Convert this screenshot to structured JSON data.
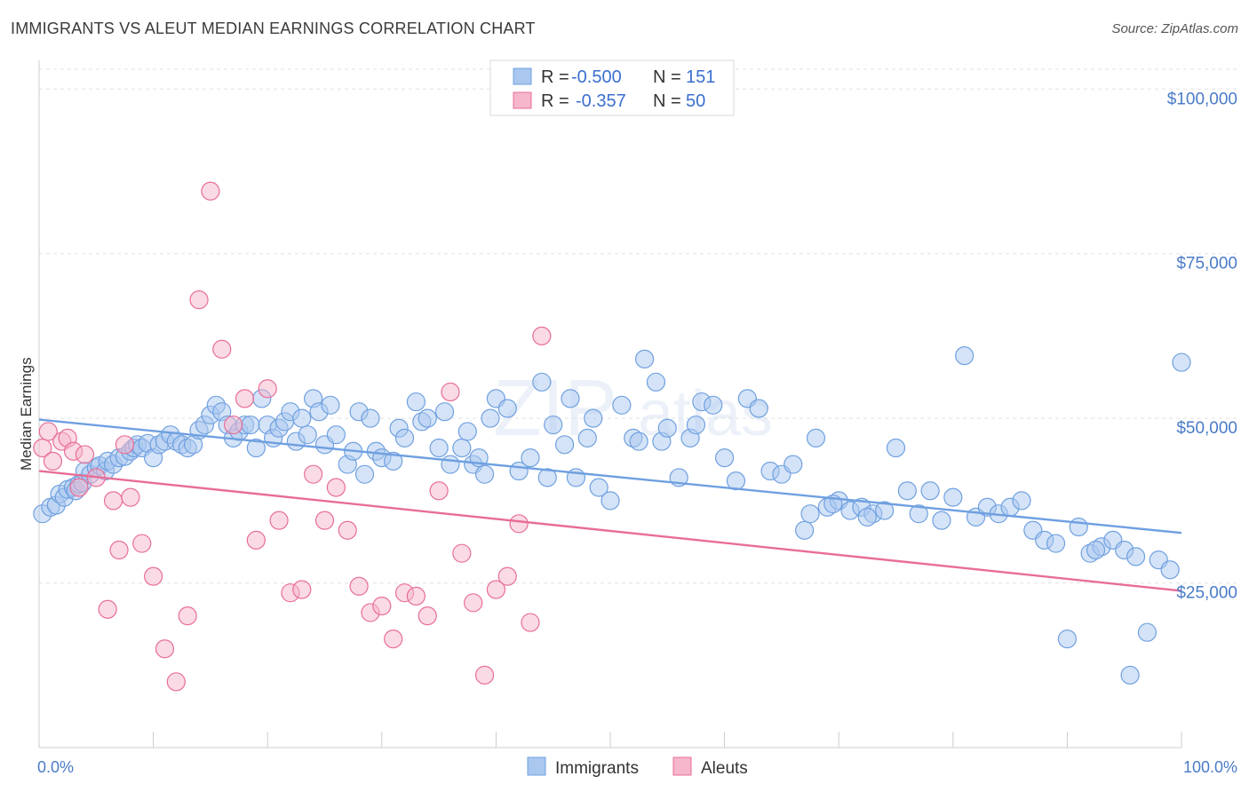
{
  "header": {
    "title": "IMMIGRANTS VS ALEUT MEDIAN EARNINGS CORRELATION CHART",
    "source": "Source: ZipAtlas.com"
  },
  "stats_legend": {
    "r_label": "R =",
    "n_label": "N =",
    "rows": [
      {
        "color": "#a9c7ef",
        "r": "-0.500",
        "n": "151"
      },
      {
        "color": "#f6b6cb",
        "r": "-0.357",
        "n": "50"
      }
    ]
  },
  "watermark": {
    "zip": "ZIP",
    "atlas": "atlas"
  },
  "chart_data": {
    "type": "scatter",
    "title": "IMMIGRANTS VS ALEUT MEDIAN EARNINGS CORRELATION CHART",
    "xlabel": "",
    "ylabel": "Median Earnings",
    "xlim": [
      0,
      100
    ],
    "ylim": [
      0,
      103000
    ],
    "x_tick_labels": [
      "0.0%",
      "100.0%"
    ],
    "y_ticks": [
      25000,
      50000,
      75000,
      100000
    ],
    "y_tick_labels": [
      "$25,000",
      "$50,000",
      "$75,000",
      "$100,000"
    ],
    "grid": true,
    "legend_position": "bottom-center",
    "series": [
      {
        "name": "Immigrants",
        "color": "#6fa0e0",
        "fill": "#a9c7ef",
        "trend": {
          "x": [
            0,
            100
          ],
          "y": [
            49800,
            32600
          ]
        },
        "points": [
          [
            0.3,
            35500
          ],
          [
            1,
            36500
          ],
          [
            1.5,
            36800
          ],
          [
            1.8,
            38500
          ],
          [
            2.2,
            38000
          ],
          [
            2.5,
            39200
          ],
          [
            3,
            39500
          ],
          [
            3.2,
            39000
          ],
          [
            3.5,
            40000
          ],
          [
            3.8,
            40200
          ],
          [
            4,
            42000
          ],
          [
            4.5,
            41500
          ],
          [
            5,
            42500
          ],
          [
            5.3,
            42800
          ],
          [
            5.8,
            42000
          ],
          [
            6,
            43500
          ],
          [
            6.5,
            43000
          ],
          [
            7,
            44000
          ],
          [
            7.5,
            44200
          ],
          [
            8,
            45000
          ],
          [
            8.3,
            45500
          ],
          [
            8.6,
            46000
          ],
          [
            9,
            45500
          ],
          [
            9.5,
            46200
          ],
          [
            10,
            44000
          ],
          [
            10.5,
            46000
          ],
          [
            11,
            46500
          ],
          [
            11.5,
            47500
          ],
          [
            12,
            46500
          ],
          [
            12.5,
            46000
          ],
          [
            13,
            45500
          ],
          [
            13.5,
            46000
          ],
          [
            14,
            48200
          ],
          [
            14.5,
            49000
          ],
          [
            15,
            50500
          ],
          [
            15.5,
            52000
          ],
          [
            16,
            51000
          ],
          [
            16.5,
            49000
          ],
          [
            17,
            47000
          ],
          [
            17.5,
            48000
          ],
          [
            18,
            49000
          ],
          [
            18.5,
            49000
          ],
          [
            19,
            45500
          ],
          [
            19.5,
            53000
          ],
          [
            20,
            49000
          ],
          [
            20.5,
            47000
          ],
          [
            21,
            48500
          ],
          [
            21.5,
            49500
          ],
          [
            22,
            51000
          ],
          [
            22.5,
            46500
          ],
          [
            23,
            50000
          ],
          [
            23.5,
            47500
          ],
          [
            24,
            53000
          ],
          [
            24.5,
            51000
          ],
          [
            25,
            46000
          ],
          [
            25.5,
            52000
          ],
          [
            26,
            47500
          ],
          [
            27,
            43000
          ],
          [
            27.5,
            45000
          ],
          [
            28,
            51000
          ],
          [
            28.5,
            41500
          ],
          [
            29,
            50000
          ],
          [
            29.5,
            45000
          ],
          [
            30,
            44000
          ],
          [
            31,
            43500
          ],
          [
            31.5,
            48500
          ],
          [
            32,
            47000
          ],
          [
            33,
            52500
          ],
          [
            33.5,
            49500
          ],
          [
            34,
            50000
          ],
          [
            35,
            45500
          ],
          [
            35.5,
            51000
          ],
          [
            36,
            43000
          ],
          [
            37,
            45500
          ],
          [
            37.5,
            48000
          ],
          [
            38,
            43000
          ],
          [
            38.5,
            44000
          ],
          [
            39,
            41500
          ],
          [
            39.5,
            50000
          ],
          [
            40,
            53000
          ],
          [
            41,
            51500
          ],
          [
            42,
            42000
          ],
          [
            43,
            44000
          ],
          [
            44,
            55500
          ],
          [
            44.5,
            41000
          ],
          [
            45,
            49000
          ],
          [
            46,
            46000
          ],
          [
            46.5,
            53000
          ],
          [
            47,
            41000
          ],
          [
            48,
            47000
          ],
          [
            49,
            39500
          ],
          [
            50,
            37500
          ],
          [
            51,
            52000
          ],
          [
            52,
            47000
          ],
          [
            52.5,
            46500
          ],
          [
            53,
            59000
          ],
          [
            54,
            55500
          ],
          [
            54.5,
            46500
          ],
          [
            55,
            48500
          ],
          [
            56,
            41000
          ],
          [
            57,
            47000
          ],
          [
            58,
            52500
          ],
          [
            59,
            52000
          ],
          [
            60,
            44000
          ],
          [
            61,
            40500
          ],
          [
            62,
            53000
          ],
          [
            63,
            51500
          ],
          [
            64,
            42000
          ],
          [
            65,
            41500
          ],
          [
            66,
            43000
          ],
          [
            67,
            33000
          ],
          [
            67.5,
            35500
          ],
          [
            68,
            47000
          ],
          [
            69,
            36500
          ],
          [
            70,
            37500
          ],
          [
            71,
            36000
          ],
          [
            72,
            36500
          ],
          [
            73,
            35500
          ],
          [
            74,
            36000
          ],
          [
            75,
            45500
          ],
          [
            76,
            39000
          ],
          [
            77,
            35500
          ],
          [
            78,
            39000
          ],
          [
            79,
            34500
          ],
          [
            80,
            38000
          ],
          [
            81,
            59500
          ],
          [
            82,
            35000
          ],
          [
            83,
            36500
          ],
          [
            84,
            35500
          ],
          [
            85,
            36500
          ],
          [
            86,
            37500
          ],
          [
            87,
            33000
          ],
          [
            88,
            31500
          ],
          [
            89,
            31000
          ],
          [
            90,
            16500
          ],
          [
            91,
            33500
          ],
          [
            92,
            29500
          ],
          [
            93,
            30500
          ],
          [
            94,
            31500
          ],
          [
            95,
            30000
          ],
          [
            96,
            29000
          ],
          [
            97,
            17500
          ],
          [
            98,
            28500
          ],
          [
            99,
            27000
          ],
          [
            100,
            58500
          ],
          [
            48.5,
            50000
          ],
          [
            57.5,
            49000
          ],
          [
            69.5,
            37000
          ],
          [
            72.5,
            35000
          ],
          [
            92.5,
            30000
          ],
          [
            95.5,
            11000
          ]
        ]
      },
      {
        "name": "Aleuts",
        "color": "#e86d97",
        "fill": "#f6b6cb",
        "trend": {
          "x": [
            0,
            100
          ],
          "y": [
            42000,
            23800
          ]
        },
        "points": [
          [
            0.3,
            45500
          ],
          [
            0.8,
            48000
          ],
          [
            1.2,
            43500
          ],
          [
            2,
            46500
          ],
          [
            2.5,
            47000
          ],
          [
            3,
            45000
          ],
          [
            3.5,
            39500
          ],
          [
            4,
            44500
          ],
          [
            5,
            41000
          ],
          [
            6,
            21000
          ],
          [
            6.5,
            37500
          ],
          [
            7,
            30000
          ],
          [
            7.5,
            46000
          ],
          [
            8,
            38000
          ],
          [
            9,
            31000
          ],
          [
            10,
            26000
          ],
          [
            11,
            15000
          ],
          [
            12,
            10000
          ],
          [
            13,
            20000
          ],
          [
            14,
            68000
          ],
          [
            15,
            84500
          ],
          [
            16,
            60500
          ],
          [
            17,
            49000
          ],
          [
            18,
            53000
          ],
          [
            19,
            31500
          ],
          [
            20,
            54500
          ],
          [
            21,
            34500
          ],
          [
            22,
            23500
          ],
          [
            23,
            24000
          ],
          [
            24,
            41500
          ],
          [
            25,
            34500
          ],
          [
            26,
            39500
          ],
          [
            27,
            33000
          ],
          [
            28,
            24500
          ],
          [
            29,
            20500
          ],
          [
            30,
            21500
          ],
          [
            31,
            16500
          ],
          [
            32,
            23500
          ],
          [
            33,
            23000
          ],
          [
            34,
            20000
          ],
          [
            35,
            39000
          ],
          [
            36,
            54000
          ],
          [
            37,
            29500
          ],
          [
            38,
            22000
          ],
          [
            39,
            11000
          ],
          [
            40,
            24000
          ],
          [
            41,
            26000
          ],
          [
            42,
            34000
          ],
          [
            43,
            19000
          ],
          [
            44,
            62500
          ]
        ]
      }
    ]
  },
  "bottom_legend": {
    "items": [
      {
        "label": "Immigrants",
        "color": "#a9c7ef"
      },
      {
        "label": "Aleuts",
        "color": "#f6b6cb"
      }
    ]
  }
}
